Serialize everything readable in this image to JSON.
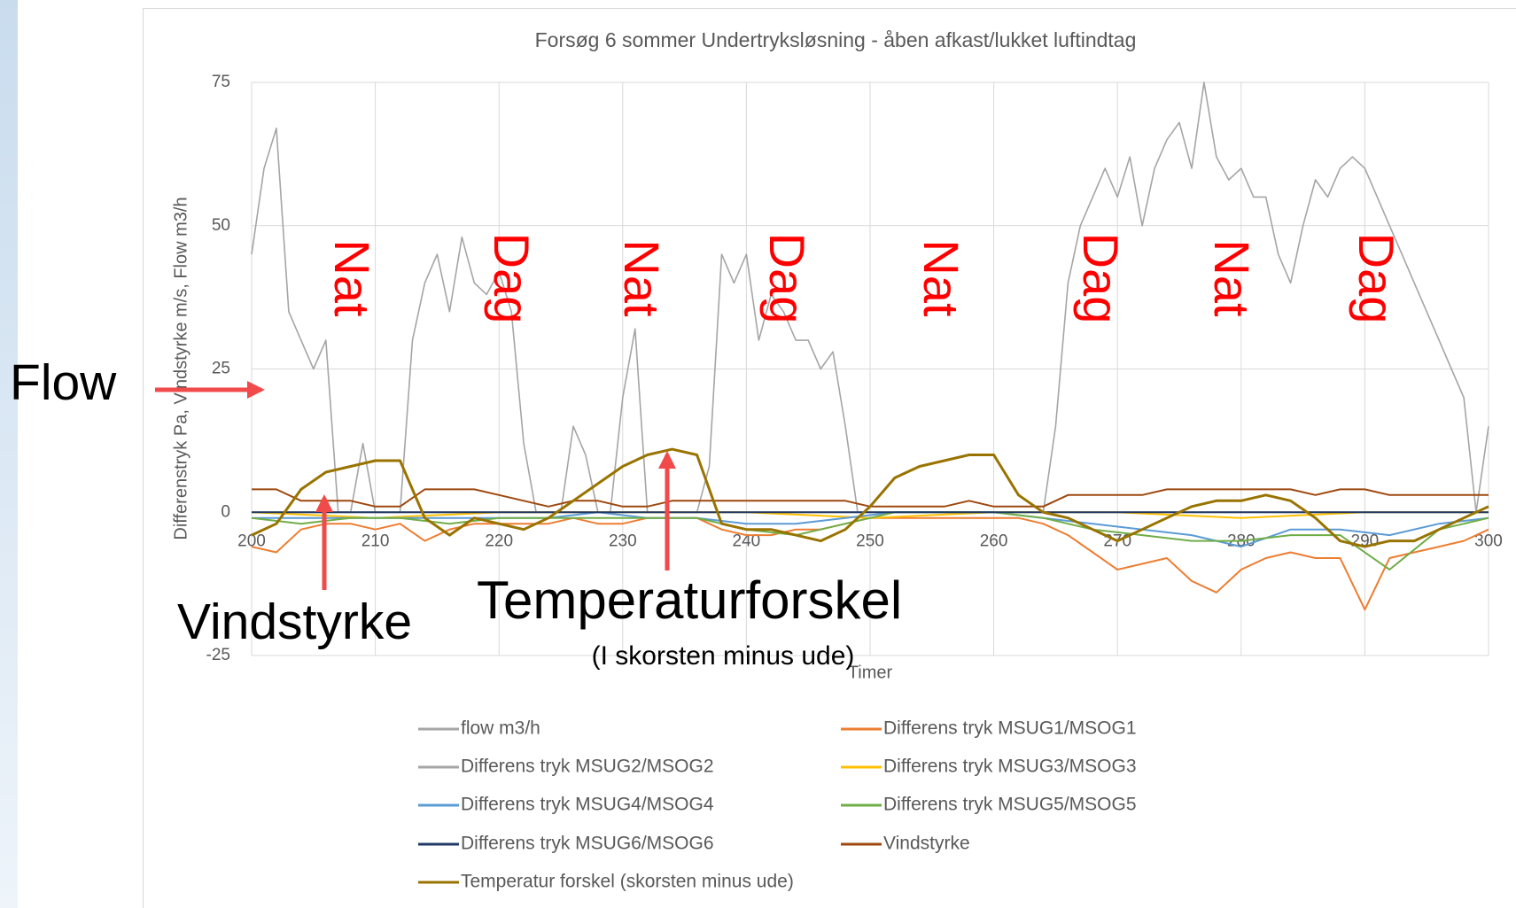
{
  "chart_data": {
    "type": "line",
    "title": "Forsøg 6 sommer Undertryksløsning - åben afkast/lukket luftindtag",
    "x_label": "Timer",
    "y_label": "Differenstryk Pa, Vindstyrke m/s, Flow m3/h",
    "xlim": [
      200,
      300
    ],
    "xticks": [
      200,
      210,
      220,
      230,
      240,
      250,
      260,
      270,
      280,
      290,
      300
    ],
    "ylim": [
      -25,
      75
    ],
    "yticks": [
      -25,
      0,
      25,
      50,
      75
    ],
    "grid": true,
    "legend": "bottom",
    "annotations": [
      "Nat",
      "Dag",
      "Nat",
      "Dag",
      "Nat",
      "Dag",
      "Nat",
      "Dag",
      "Flow",
      "Vindstyrke",
      "Temperaturforskel",
      "(I skorsten minus ude)"
    ],
    "series": [
      {
        "name": "flow m3/h",
        "color": "#a5a5a5",
        "x": [
          200,
          201,
          202,
          203,
          204,
          205,
          206,
          207,
          208,
          209,
          210,
          211,
          212,
          213,
          214,
          215,
          216,
          217,
          218,
          219,
          220,
          221,
          222,
          223,
          224,
          225,
          226,
          227,
          228,
          229,
          230,
          231,
          232,
          233,
          234,
          235,
          236,
          237,
          238,
          239,
          240,
          241,
          242,
          243,
          244,
          245,
          246,
          247,
          248,
          249,
          250,
          251,
          252,
          253,
          254,
          255,
          256,
          257,
          258,
          259,
          260,
          261,
          262,
          263,
          264,
          265,
          266,
          267,
          268,
          269,
          270,
          271,
          272,
          273,
          274,
          275,
          276,
          277,
          278,
          279,
          280,
          281,
          282,
          283,
          284,
          285,
          286,
          287,
          288,
          289,
          290,
          291,
          292,
          293,
          294,
          295,
          296,
          297,
          298,
          299,
          300
        ],
        "values": [
          45,
          60,
          67,
          35,
          30,
          25,
          30,
          0,
          0,
          12,
          0,
          0,
          0,
          30,
          40,
          45,
          35,
          48,
          40,
          38,
          42,
          35,
          12,
          0,
          0,
          0,
          15,
          10,
          0,
          0,
          20,
          32,
          0,
          0,
          0,
          0,
          0,
          8,
          45,
          40,
          45,
          30,
          38,
          35,
          30,
          30,
          25,
          28,
          15,
          0,
          0,
          0,
          0,
          0,
          0,
          0,
          0,
          0,
          0,
          0,
          0,
          0,
          0,
          0,
          0,
          15,
          40,
          50,
          55,
          60,
          55,
          62,
          50,
          60,
          65,
          68,
          60,
          75,
          62,
          58,
          60,
          55,
          55,
          45,
          40,
          50,
          58,
          55,
          60,
          62,
          60,
          55,
          50,
          45,
          40,
          35,
          30,
          25,
          20,
          0,
          15
        ]
      },
      {
        "name": "Differens tryk MSUG1/MSOG1",
        "color": "#ed7d31",
        "x": [
          200,
          202,
          204,
          206,
          208,
          210,
          212,
          214,
          216,
          218,
          220,
          222,
          224,
          226,
          228,
          230,
          232,
          234,
          236,
          238,
          240,
          242,
          244,
          246,
          248,
          250,
          252,
          254,
          256,
          258,
          260,
          262,
          264,
          266,
          268,
          270,
          272,
          274,
          276,
          278,
          280,
          282,
          284,
          286,
          288,
          290,
          292,
          294,
          296,
          298,
          300
        ],
        "values": [
          -6,
          -7,
          -3,
          -2,
          -2,
          -3,
          -2,
          -5,
          -3,
          -2,
          -2,
          -2,
          -2,
          -1,
          -2,
          -2,
          -1,
          -1,
          -1,
          -3,
          -4,
          -4,
          -3,
          -3,
          -2,
          -1,
          -1,
          -1,
          -1,
          -1,
          -1,
          -1,
          -2,
          -4,
          -7,
          -10,
          -9,
          -8,
          -12,
          -14,
          -10,
          -8,
          -7,
          -8,
          -8,
          -17,
          -8,
          -7,
          -6,
          -5,
          -3
        ]
      },
      {
        "name": "Differens tryk MSUG2/MSOG2",
        "color": "#a5a5a5",
        "x": [
          200,
          210,
          220,
          230,
          240,
          250,
          260,
          270,
          280,
          290,
          300
        ],
        "values": [
          0,
          0,
          0,
          0,
          0,
          0,
          0,
          0,
          0,
          0,
          0
        ]
      },
      {
        "name": "Differens tryk MSUG3/MSOG3",
        "color": "#ffc000",
        "x": [
          200,
          210,
          220,
          230,
          240,
          250,
          260,
          270,
          280,
          290,
          300
        ],
        "values": [
          0,
          -1,
          0,
          0,
          0,
          -1,
          0,
          0,
          -1,
          0,
          0
        ]
      },
      {
        "name": "Differens tryk MSUG4/MSOG4",
        "color": "#5b9bd5",
        "x": [
          200,
          204,
          208,
          212,
          216,
          220,
          224,
          228,
          232,
          236,
          240,
          244,
          248,
          252,
          256,
          260,
          264,
          268,
          272,
          276,
          280,
          284,
          288,
          292,
          296,
          300
        ],
        "values": [
          -1,
          -1,
          -1,
          -1,
          -1,
          -1,
          -1,
          0,
          -1,
          -1,
          -2,
          -2,
          -1,
          0,
          0,
          0,
          -1,
          -2,
          -3,
          -4,
          -6,
          -3,
          -3,
          -4,
          -2,
          -1
        ]
      },
      {
        "name": "Differens tryk MSUG5/MSOG5",
        "color": "#70ad47",
        "x": [
          200,
          204,
          208,
          212,
          216,
          220,
          224,
          228,
          232,
          236,
          240,
          244,
          248,
          252,
          256,
          260,
          264,
          268,
          272,
          276,
          280,
          284,
          288,
          292,
          296,
          300
        ],
        "values": [
          -1,
          -2,
          -1,
          -1,
          -2,
          -1,
          -1,
          -1,
          -1,
          -1,
          -3,
          -4,
          -2,
          0,
          0,
          0,
          -1,
          -3,
          -4,
          -5,
          -5,
          -4,
          -4,
          -10,
          -3,
          -1
        ]
      },
      {
        "name": "Differens tryk MSUG6/MSOG6",
        "color": "#1f3864",
        "x": [
          200,
          210,
          220,
          230,
          240,
          250,
          260,
          270,
          280,
          290,
          300
        ],
        "values": [
          0,
          0,
          0,
          0,
          0,
          0,
          0,
          0,
          0,
          0,
          0
        ]
      },
      {
        "name": "Vindstyrke",
        "color": "#9e480e",
        "x": [
          200,
          202,
          204,
          206,
          208,
          210,
          212,
          214,
          216,
          218,
          220,
          222,
          224,
          226,
          228,
          230,
          232,
          234,
          236,
          238,
          240,
          242,
          244,
          246,
          248,
          250,
          252,
          254,
          256,
          258,
          260,
          262,
          264,
          266,
          268,
          270,
          272,
          274,
          276,
          278,
          280,
          282,
          284,
          286,
          288,
          290,
          292,
          294,
          296,
          298,
          300
        ],
        "values": [
          4,
          4,
          2,
          2,
          2,
          1,
          1,
          4,
          4,
          4,
          3,
          2,
          1,
          2,
          2,
          1,
          1,
          2,
          2,
          2,
          2,
          2,
          2,
          2,
          2,
          1,
          1,
          1,
          1,
          2,
          1,
          1,
          1,
          3,
          3,
          3,
          3,
          4,
          4,
          4,
          4,
          4,
          4,
          3,
          4,
          4,
          3,
          3,
          3,
          3,
          3
        ]
      },
      {
        "name": "Temperatur forskel (skorsten minus ude)",
        "color": "#997300",
        "x": [
          200,
          202,
          204,
          206,
          208,
          210,
          212,
          214,
          216,
          218,
          220,
          222,
          224,
          226,
          228,
          230,
          232,
          234,
          236,
          238,
          240,
          242,
          244,
          246,
          248,
          250,
          252,
          254,
          256,
          258,
          260,
          262,
          264,
          266,
          268,
          270,
          272,
          274,
          276,
          278,
          280,
          282,
          284,
          286,
          288,
          290,
          292,
          294,
          296,
          298,
          300
        ],
        "values": [
          -4,
          -2,
          4,
          7,
          8,
          9,
          9,
          -1,
          -4,
          -1,
          -2,
          -3,
          -1,
          2,
          5,
          8,
          10,
          11,
          10,
          -2,
          -3,
          -3,
          -4,
          -5,
          -3,
          1,
          6,
          8,
          9,
          10,
          10,
          3,
          0,
          -1,
          -3,
          -5,
          -3,
          -1,
          1,
          2,
          2,
          3,
          2,
          -1,
          -5,
          -6,
          -5,
          -5,
          -3,
          -1,
          1
        ]
      }
    ]
  }
}
